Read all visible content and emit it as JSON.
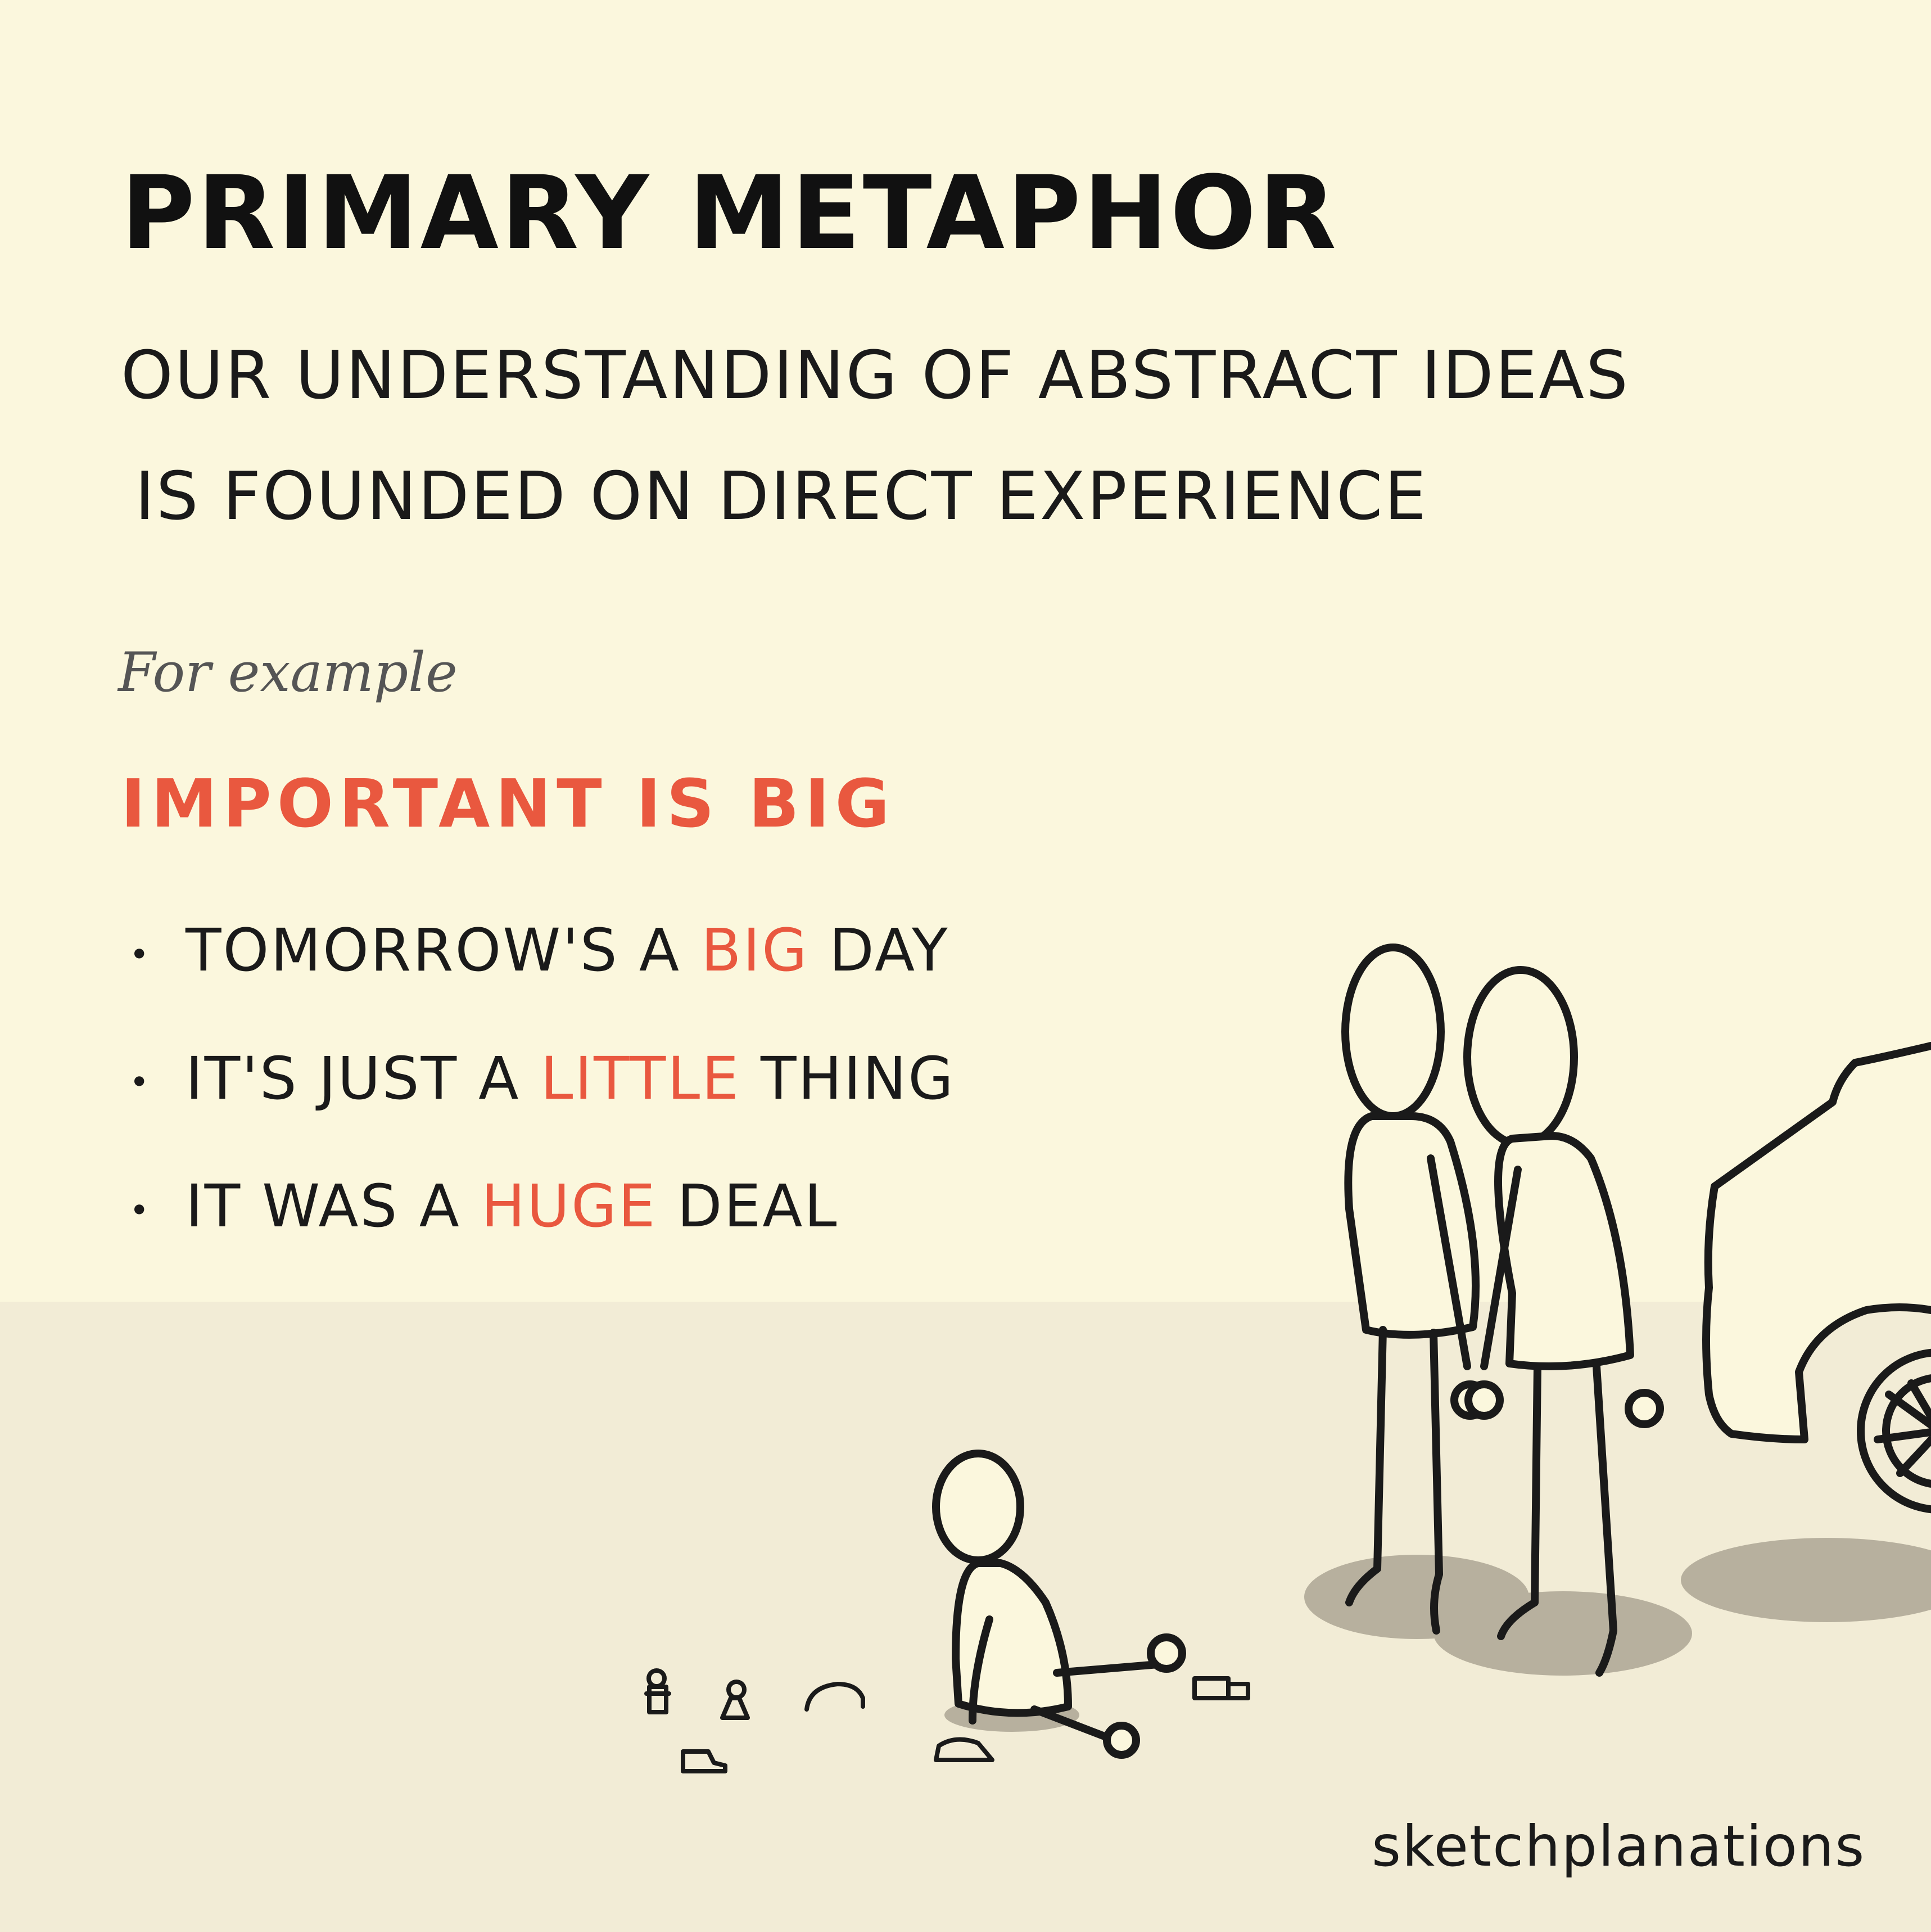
{
  "title": "PRIMARY METAPHOR",
  "subtitle": {
    "line1": "OUR UNDERSTANDING OF ABSTRACT IDEAS",
    "line2": "IS FOUNDED ON DIRECT EXPERIENCE"
  },
  "example_intro": "For example",
  "heading": "IMPORTANT IS BIG",
  "examples": [
    {
      "before": "TOMORROW'S A ",
      "highlight": "BIG",
      "after": " DAY"
    },
    {
      "before": "IT'S JUST A ",
      "highlight": "LITTLE",
      "after": " THING"
    },
    {
      "before": "IT WAS A ",
      "highlight": "HUGE",
      "after": " DEAL"
    }
  ],
  "brand": "sketchplanations",
  "colors": {
    "background": "#fbf7dd",
    "ground": "#f2ecd6",
    "accent": "#e9583f",
    "ink": "#1a1a1a",
    "shadow": "#b7b09e"
  },
  "illustration": {
    "figures": [
      "adult-figure-left",
      "adult-figure-right",
      "child-figure"
    ],
    "objects": [
      "car",
      "toy-people",
      "toy-cars",
      "toy-truck"
    ]
  }
}
